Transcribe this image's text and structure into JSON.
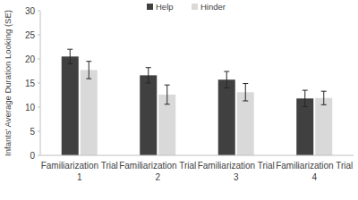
{
  "chart_data": {
    "type": "bar",
    "y_label": "Infants' Average Duration Looking (SE)",
    "categories": [
      "Familiarization Trial 1",
      "Familiarization Trial 2",
      "Familiarization Trial 3",
      "Familiarization Trial 4"
    ],
    "series": [
      {
        "name": "Help",
        "color": "#404040",
        "values": [
          20.5,
          16.6,
          15.7,
          11.8
        ],
        "errors": [
          1.5,
          1.6,
          1.7,
          1.7
        ]
      },
      {
        "name": "Hinder",
        "color": "#d9d9d9",
        "values": [
          17.7,
          12.6,
          13.1,
          11.9
        ],
        "errors": [
          1.8,
          2.0,
          1.8,
          1.4
        ]
      }
    ],
    "ylim": [
      0,
      30
    ],
    "yticks": [
      0,
      5,
      10,
      15,
      20,
      25,
      30
    ],
    "grid": false,
    "legend": "top"
  }
}
